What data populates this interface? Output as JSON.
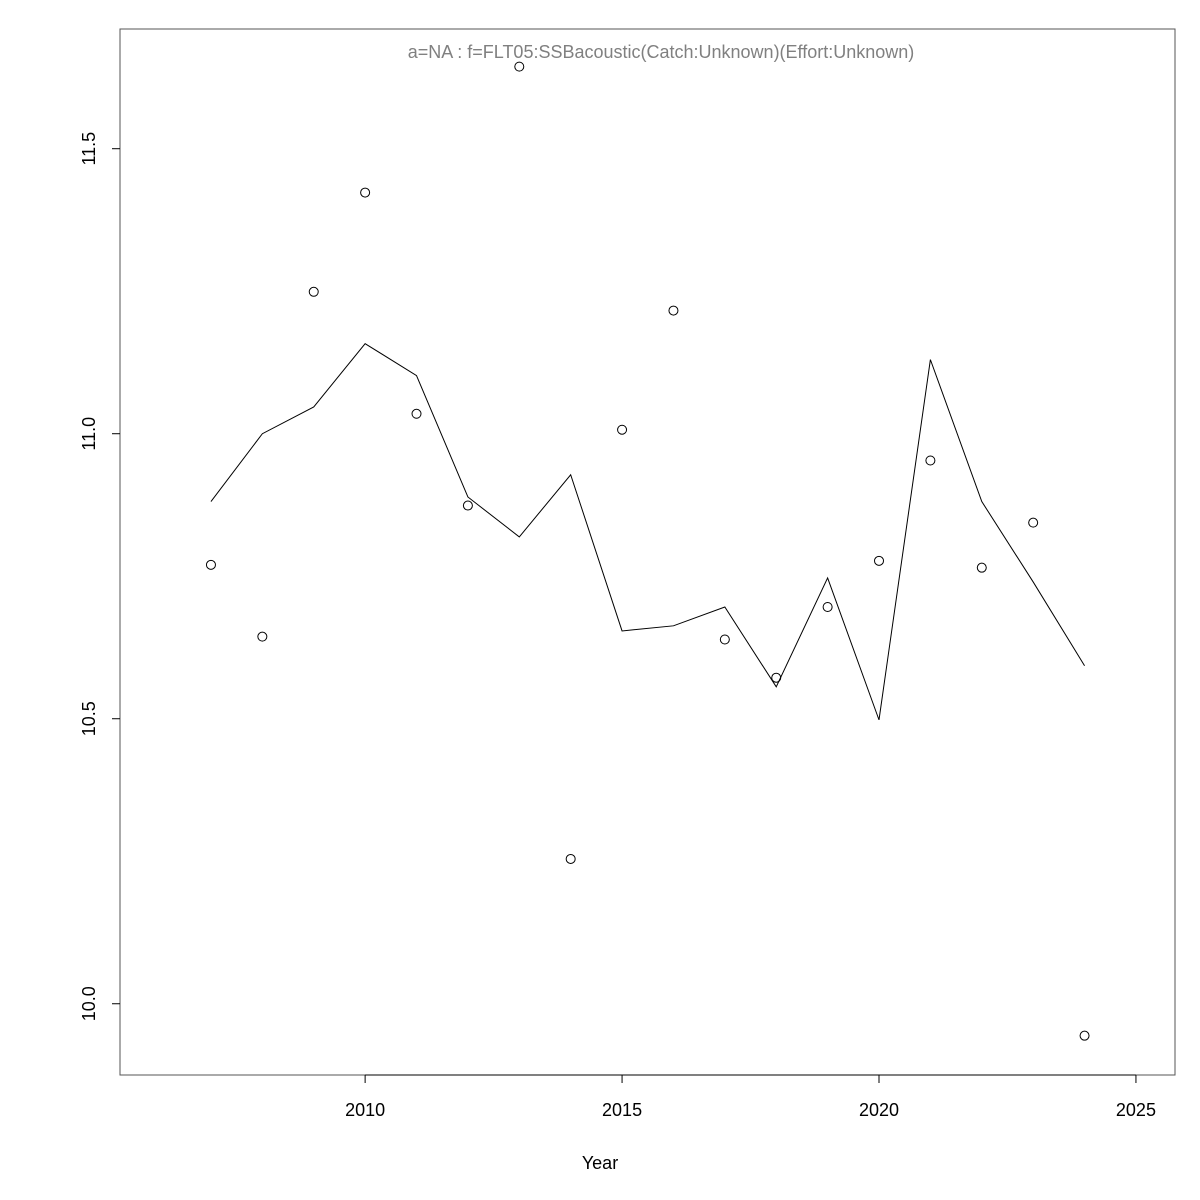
{
  "chart_data": {
    "type": "scatter-line",
    "title": "a=NA  :  f=FLT05:SSBacoustic(Catch:Unknown)(Effort:Unknown)",
    "x_label": "Year",
    "x": [
      2007,
      2008,
      2009,
      2010,
      2011,
      2012,
      2013,
      2014,
      2015,
      2016,
      2017,
      2018,
      2019,
      2020,
      2021,
      2022,
      2023,
      2024
    ],
    "series": [
      {
        "type": "scatter",
        "color": "#000000",
        "values": [
          10.77,
          10.644,
          11.249,
          11.423,
          11.035,
          10.874,
          11.644,
          10.254,
          11.007,
          11.216,
          10.639,
          10.572,
          10.696,
          10.777,
          10.953,
          10.765,
          10.844,
          9.944
        ]
      },
      {
        "type": "line",
        "color": "#000000",
        "values": [
          10.881,
          11.0,
          11.047,
          11.158,
          11.102,
          10.889,
          10.819,
          10.928,
          10.654,
          10.663,
          10.696,
          10.556,
          10.747,
          10.498,
          11.13,
          10.881,
          10.74,
          10.593
        ]
      }
    ],
    "xlim": [
      2005.23,
      2025.76
    ],
    "xticks": [
      2010,
      2015,
      2020,
      2025
    ],
    "ylim": [
      9.875,
      11.71
    ],
    "yticks": [
      {
        "value": 10,
        "label": "10.0"
      },
      10.5,
      {
        "value": 11,
        "label": "11.0"
      },
      11.5
    ]
  }
}
